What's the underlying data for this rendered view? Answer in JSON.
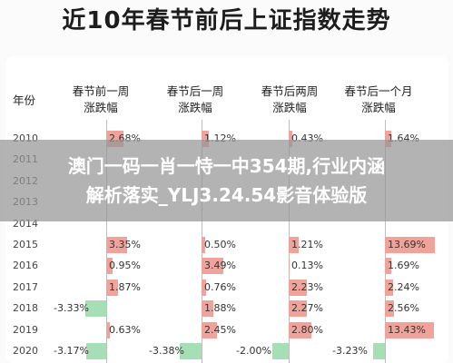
{
  "title": "近10年春节前后上证指数走势",
  "overlay": {
    "line1": "澳门一码一肖一恃一中354期,行业内涵",
    "line2": "解析落实_YLJ3.24.54影音体验版"
  },
  "colors": {
    "positive": "#f0a39a",
    "negative": "#a6dfb6"
  },
  "chart_data": {
    "type": "table",
    "row_header": "年份",
    "columns": [
      {
        "header_line1": "春节前一周",
        "header_line2": "涨跌幅"
      },
      {
        "header_line1": "春节后一周",
        "header_line2": "涨跌幅"
      },
      {
        "header_line1": "春节后两周",
        "header_line2": "涨跌幅"
      },
      {
        "header_line1": "春节后一个月",
        "header_line2": "涨跌幅"
      }
    ],
    "rows": [
      {
        "year": "2010",
        "values": [
          2.68,
          1.12,
          0.43,
          1.64
        ],
        "labels": [
          "2.68%",
          "1.12%",
          "0.43%",
          "1.64%"
        ]
      },
      {
        "year": "2011",
        "values": [
          null,
          null,
          null,
          null
        ],
        "labels": [
          "",
          "",
          "",
          ""
        ]
      },
      {
        "year": "2012",
        "values": [
          null,
          null,
          null,
          null
        ],
        "labels": [
          "",
          "",
          "",
          ""
        ]
      },
      {
        "year": "2013",
        "values": [
          null,
          null,
          null,
          null
        ],
        "labels": [
          "",
          "",
          "",
          ""
        ]
      },
      {
        "year": "2014",
        "values": [
          null,
          null,
          null,
          null
        ],
        "labels": [
          "",
          "",
          "",
          ""
        ]
      },
      {
        "year": "2015",
        "values": [
          3.35,
          0.5,
          1.21,
          13.69
        ],
        "labels": [
          "3.35%",
          "0.50%",
          "1.21%",
          "13.69%"
        ]
      },
      {
        "year": "2016",
        "values": [
          0.95,
          3.49,
          0.13,
          1.69
        ],
        "labels": [
          "0.95%",
          "3.49%",
          "0.13%",
          "1.69%"
        ]
      },
      {
        "year": "2017",
        "values": [
          1.87,
          0.76,
          2.23,
          2.24
        ],
        "labels": [
          "1.87%",
          "0.76%",
          "2.23%",
          "2.24%"
        ]
      },
      {
        "year": "2018",
        "values": [
          -3.33,
          1.88,
          2.27,
          2.56
        ],
        "labels": [
          "-3.33%",
          "1.88%",
          "2.27%",
          "2.56%"
        ]
      },
      {
        "year": "2019",
        "values": [
          0.63,
          2.45,
          2.8,
          13.43
        ],
        "labels": [
          "0.63%",
          "2.45%",
          "2.80%",
          "13.43%"
        ]
      },
      {
        "year": "2020",
        "values": [
          -3.17,
          -3.38,
          -2.0,
          -3.23
        ],
        "labels": [
          "-3.17%",
          "-3.38%",
          "-2.00%",
          "-3.23%"
        ]
      }
    ]
  }
}
